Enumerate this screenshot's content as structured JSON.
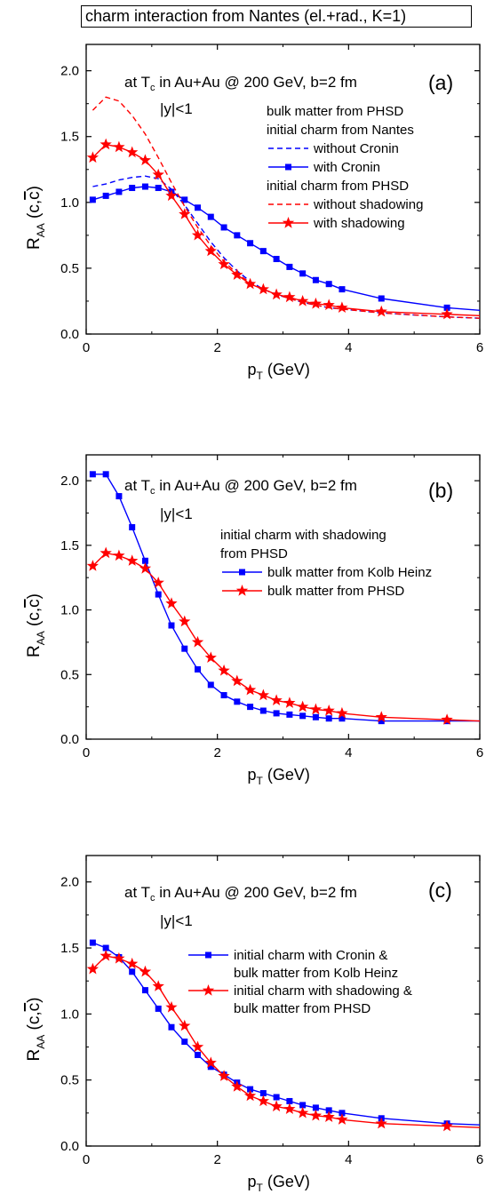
{
  "header": {
    "title": "charm interaction from Nantes (el.+rad., K=1)"
  },
  "colors": {
    "blue": "#0000ff",
    "red": "#ff0000",
    "axis": "#000000"
  },
  "chart_data": [
    {
      "type": "line",
      "panel_label": "(a)",
      "annotation": {
        "line1_prefix": "at T",
        "line1_sub": "c",
        "line1_suffix": " in Au+Au @ 200 GeV, b=2 fm",
        "line2": "|y|<1"
      },
      "xlabel": {
        "main": "p",
        "sub": "T",
        "rest": " (GeV)"
      },
      "ylabel": {
        "main": "R",
        "sub": "AA",
        "rest": " (c,",
        "bar": "c",
        "close": ")"
      },
      "xlim": [
        0,
        6
      ],
      "ylim": [
        0,
        2.2
      ],
      "x_ticks": [
        0,
        2,
        4,
        6
      ],
      "y_ticks": [
        0.0,
        0.5,
        1.0,
        1.5,
        2.0
      ],
      "x_tick_labels": [
        "0",
        "2",
        "4",
        "6"
      ],
      "y_tick_labels": [
        "0.0",
        "0.5",
        "1.0",
        "1.5",
        "2.0"
      ],
      "legend_position": "right",
      "legend_headers": [
        {
          "text": "bulk matter from PHSD",
          "before_series": 0
        },
        {
          "text": "initial charm from Nantes",
          "before_series": 0
        },
        {
          "text": "initial charm from PHSD",
          "before_series": 2
        }
      ],
      "series": [
        {
          "name": "without Cronin",
          "color": "#0000ff",
          "dash": true,
          "marker": "none",
          "x": [
            0.1,
            0.3,
            0.5,
            0.7,
            0.9,
            1.1,
            1.3,
            1.5,
            1.7,
            1.9,
            2.1,
            2.3,
            2.5,
            2.7,
            2.9,
            3.1,
            3.3,
            3.5,
            3.7,
            3.9,
            4.5,
            5.5,
            6.0
          ],
          "y": [
            1.12,
            1.14,
            1.17,
            1.19,
            1.2,
            1.18,
            1.1,
            0.98,
            0.84,
            0.7,
            0.58,
            0.48,
            0.4,
            0.34,
            0.3,
            0.27,
            0.24,
            0.22,
            0.2,
            0.19,
            0.16,
            0.13,
            0.12
          ]
        },
        {
          "name": "with Cronin",
          "color": "#0000ff",
          "dash": false,
          "marker": "square",
          "x": [
            0.1,
            0.3,
            0.5,
            0.7,
            0.9,
            1.1,
            1.3,
            1.5,
            1.7,
            1.9,
            2.1,
            2.3,
            2.5,
            2.7,
            2.9,
            3.1,
            3.3,
            3.5,
            3.7,
            3.9,
            4.5,
            5.5,
            6.0
          ],
          "y": [
            1.02,
            1.05,
            1.08,
            1.11,
            1.12,
            1.11,
            1.08,
            1.02,
            0.96,
            0.89,
            0.81,
            0.75,
            0.69,
            0.63,
            0.57,
            0.51,
            0.46,
            0.41,
            0.38,
            0.34,
            0.27,
            0.2,
            0.18
          ]
        },
        {
          "name": "without shadowing",
          "color": "#ff0000",
          "dash": true,
          "marker": "none",
          "x": [
            0.1,
            0.3,
            0.5,
            0.7,
            0.9,
            1.1,
            1.3,
            1.5,
            1.7,
            1.9,
            2.1,
            2.3,
            2.5,
            2.7,
            2.9,
            3.1,
            3.3,
            3.5,
            3.7,
            3.9,
            4.5,
            5.5,
            6.0
          ],
          "y": [
            1.7,
            1.8,
            1.77,
            1.66,
            1.52,
            1.34,
            1.15,
            0.97,
            0.81,
            0.67,
            0.55,
            0.46,
            0.39,
            0.34,
            0.3,
            0.27,
            0.24,
            0.22,
            0.2,
            0.19,
            0.16,
            0.13,
            0.12
          ]
        },
        {
          "name": "with shadowing",
          "color": "#ff0000",
          "dash": false,
          "marker": "star",
          "x": [
            0.1,
            0.3,
            0.5,
            0.7,
            0.9,
            1.1,
            1.3,
            1.5,
            1.7,
            1.9,
            2.1,
            2.3,
            2.5,
            2.7,
            2.9,
            3.1,
            3.3,
            3.5,
            3.7,
            3.9,
            4.5,
            5.5,
            6.0
          ],
          "y": [
            1.34,
            1.44,
            1.42,
            1.38,
            1.32,
            1.21,
            1.05,
            0.91,
            0.75,
            0.63,
            0.53,
            0.45,
            0.38,
            0.34,
            0.3,
            0.28,
            0.25,
            0.23,
            0.22,
            0.2,
            0.17,
            0.15,
            0.14
          ]
        }
      ]
    },
    {
      "type": "line",
      "panel_label": "(b)",
      "annotation": {
        "line1_prefix": "at T",
        "line1_sub": "c",
        "line1_suffix": " in Au+Au @ 200 GeV, b=2 fm",
        "line2": "|y|<1"
      },
      "xlabel": {
        "main": "p",
        "sub": "T",
        "rest": " (GeV)"
      },
      "ylabel": {
        "main": "R",
        "sub": "AA",
        "rest": " (c,",
        "bar": "c",
        "close": ")"
      },
      "xlim": [
        0,
        6
      ],
      "ylim": [
        0,
        2.2
      ],
      "x_ticks": [
        0,
        2,
        4,
        6
      ],
      "y_ticks": [
        0.0,
        0.5,
        1.0,
        1.5,
        2.0
      ],
      "x_tick_labels": [
        "0",
        "2",
        "4",
        "6"
      ],
      "y_tick_labels": [
        "0.0",
        "0.5",
        "1.0",
        "1.5",
        "2.0"
      ],
      "legend_position": "right",
      "legend_headers": [
        {
          "text": "initial charm with shadowing",
          "before_series": 0
        },
        {
          "text": "from PHSD",
          "before_series": 0
        }
      ],
      "series": [
        {
          "name": "bulk matter from Kolb Heinz",
          "color": "#0000ff",
          "dash": false,
          "marker": "square",
          "x": [
            0.1,
            0.3,
            0.5,
            0.7,
            0.9,
            1.1,
            1.3,
            1.5,
            1.7,
            1.9,
            2.1,
            2.3,
            2.5,
            2.7,
            2.9,
            3.1,
            3.3,
            3.5,
            3.7,
            3.9,
            4.5,
            5.5,
            6.0
          ],
          "y": [
            2.05,
            2.05,
            1.88,
            1.64,
            1.38,
            1.12,
            0.88,
            0.7,
            0.54,
            0.42,
            0.34,
            0.29,
            0.25,
            0.22,
            0.2,
            0.19,
            0.18,
            0.17,
            0.16,
            0.16,
            0.14,
            0.14,
            0.14
          ]
        },
        {
          "name": "bulk matter from PHSD",
          "color": "#ff0000",
          "dash": false,
          "marker": "star",
          "x": [
            0.1,
            0.3,
            0.5,
            0.7,
            0.9,
            1.1,
            1.3,
            1.5,
            1.7,
            1.9,
            2.1,
            2.3,
            2.5,
            2.7,
            2.9,
            3.1,
            3.3,
            3.5,
            3.7,
            3.9,
            4.5,
            5.5,
            6.0
          ],
          "y": [
            1.34,
            1.44,
            1.42,
            1.38,
            1.32,
            1.21,
            1.05,
            0.91,
            0.75,
            0.63,
            0.53,
            0.45,
            0.38,
            0.34,
            0.3,
            0.28,
            0.25,
            0.23,
            0.22,
            0.2,
            0.17,
            0.15,
            0.14
          ]
        }
      ]
    },
    {
      "type": "line",
      "panel_label": "(c)",
      "annotation": {
        "line1_prefix": "at T",
        "line1_sub": "c",
        "line1_suffix": " in Au+Au @ 200 GeV, b=2 fm",
        "line2": "|y|<1"
      },
      "xlabel": {
        "main": "p",
        "sub": "T",
        "rest": " (GeV)"
      },
      "ylabel": {
        "main": "R",
        "sub": "AA",
        "rest": " (c,",
        "bar": "c",
        "close": ")"
      },
      "xlim": [
        0,
        6
      ],
      "ylim": [
        0,
        2.2
      ],
      "x_ticks": [
        0,
        2,
        4,
        6
      ],
      "y_ticks": [
        0.0,
        0.5,
        1.0,
        1.5,
        2.0
      ],
      "x_tick_labels": [
        "0",
        "2",
        "4",
        "6"
      ],
      "y_tick_labels": [
        "0.0",
        "0.5",
        "1.0",
        "1.5",
        "2.0"
      ],
      "legend_position": "right",
      "legend_headers": [],
      "series": [
        {
          "name": "initial charm with Cronin &",
          "name2": "bulk matter from Kolb Heinz",
          "color": "#0000ff",
          "dash": false,
          "marker": "square",
          "x": [
            0.1,
            0.3,
            0.5,
            0.7,
            0.9,
            1.1,
            1.3,
            1.5,
            1.7,
            1.9,
            2.1,
            2.3,
            2.5,
            2.7,
            2.9,
            3.1,
            3.3,
            3.5,
            3.7,
            3.9,
            4.5,
            5.5,
            6.0
          ],
          "y": [
            1.54,
            1.5,
            1.43,
            1.32,
            1.18,
            1.04,
            0.9,
            0.79,
            0.69,
            0.6,
            0.54,
            0.48,
            0.43,
            0.4,
            0.37,
            0.34,
            0.31,
            0.29,
            0.27,
            0.25,
            0.21,
            0.17,
            0.16
          ]
        },
        {
          "name": "initial charm with shadowing &",
          "name2": "bulk matter from PHSD",
          "color": "#ff0000",
          "dash": false,
          "marker": "star",
          "x": [
            0.1,
            0.3,
            0.5,
            0.7,
            0.9,
            1.1,
            1.3,
            1.5,
            1.7,
            1.9,
            2.1,
            2.3,
            2.5,
            2.7,
            2.9,
            3.1,
            3.3,
            3.5,
            3.7,
            3.9,
            4.5,
            5.5,
            6.0
          ],
          "y": [
            1.34,
            1.44,
            1.42,
            1.38,
            1.32,
            1.21,
            1.05,
            0.91,
            0.75,
            0.63,
            0.53,
            0.45,
            0.38,
            0.34,
            0.3,
            0.28,
            0.25,
            0.23,
            0.22,
            0.2,
            0.17,
            0.15,
            0.14
          ]
        }
      ]
    }
  ]
}
